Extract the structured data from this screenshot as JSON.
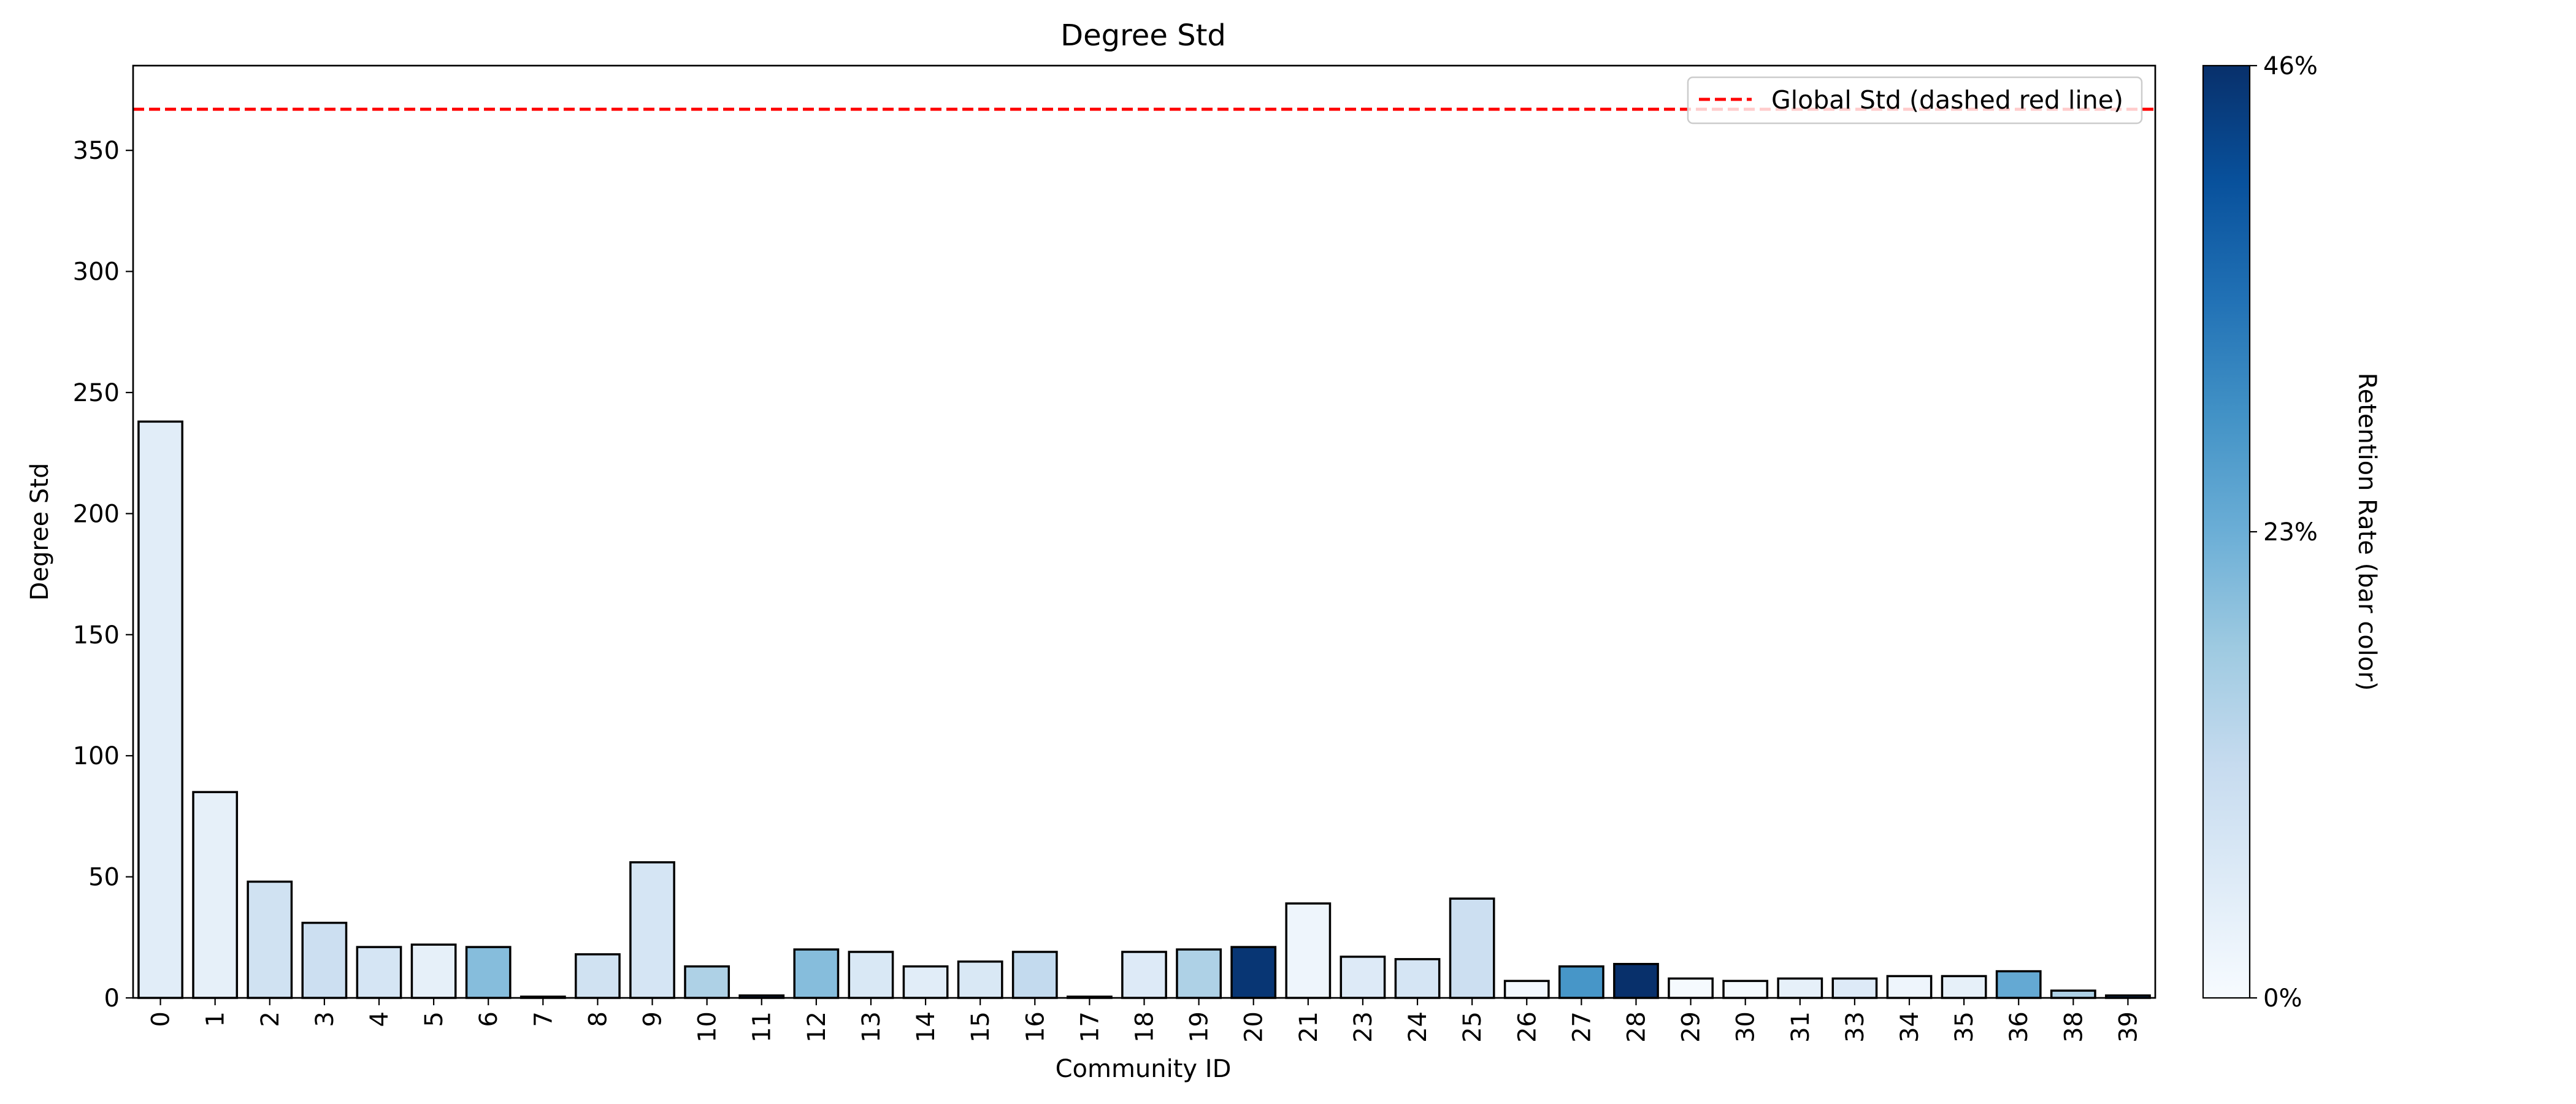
{
  "chart_data": {
    "type": "bar",
    "title": "Degree Std",
    "xlabel": "Community ID",
    "ylabel": "Degree Std",
    "ylim": [
      0,
      385
    ],
    "yticks": [
      0,
      50,
      100,
      150,
      200,
      250,
      300,
      350
    ],
    "categories": [
      "0",
      "1",
      "2",
      "3",
      "4",
      "5",
      "6",
      "7",
      "8",
      "9",
      "10",
      "11",
      "12",
      "13",
      "14",
      "15",
      "16",
      "17",
      "18",
      "19",
      "20",
      "21",
      "23",
      "24",
      "25",
      "26",
      "27",
      "28",
      "29",
      "30",
      "31",
      "33",
      "34",
      "35",
      "36",
      "38",
      "39"
    ],
    "values": [
      238,
      85,
      48,
      31,
      21,
      22,
      21,
      0.5,
      18,
      56,
      13,
      1,
      20,
      19,
      13,
      15,
      19,
      0.5,
      19,
      20,
      21,
      39,
      17,
      16,
      41,
      7,
      13,
      14,
      8,
      7,
      8,
      8,
      9,
      9,
      11,
      3,
      1
    ],
    "color_values": [
      0.05,
      0.04,
      0.09,
      0.1,
      0.08,
      0.04,
      0.2,
      0.12,
      0.09,
      0.08,
      0.15,
      0.46,
      0.2,
      0.07,
      0.05,
      0.07,
      0.12,
      0.1,
      0.06,
      0.15,
      0.45,
      0.02,
      0.06,
      0.08,
      0.1,
      0.01,
      0.28,
      0.46,
      0.005,
      0.005,
      0.04,
      0.06,
      0.02,
      0.04,
      0.24,
      0.15,
      0.4
    ],
    "reference_line": {
      "value": 367,
      "label": "Global Std (dashed red line)",
      "color": "#ff0000",
      "style": "dashed"
    },
    "legend": {
      "placement": "top-right",
      "entries": [
        "Global Std (dashed red line)"
      ]
    },
    "colorbar": {
      "label": "Retention Rate (bar color)",
      "range": [
        0,
        0.46
      ],
      "ticks": [
        "0%",
        "23%",
        "46%"
      ],
      "colormap": "Blues"
    },
    "grid": false
  }
}
